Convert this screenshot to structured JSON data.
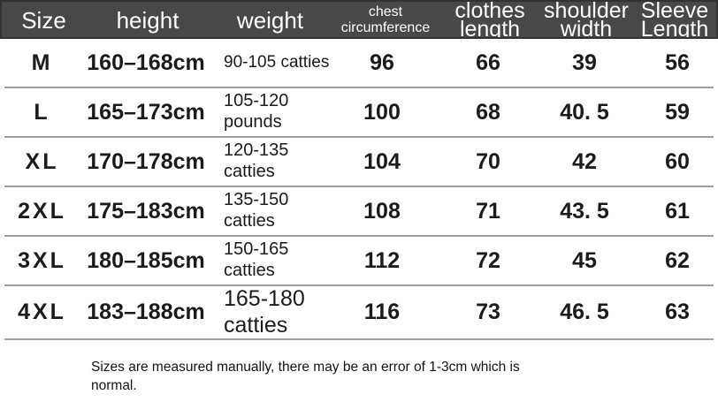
{
  "table": {
    "columns": [
      {
        "key": "size",
        "label": "Size"
      },
      {
        "key": "height",
        "label": "height"
      },
      {
        "key": "weight",
        "label": "weight"
      },
      {
        "key": "chest",
        "label": "chest circumference"
      },
      {
        "key": "clothes",
        "label": "clothes length"
      },
      {
        "key": "shoulder",
        "label": "shoulder width"
      },
      {
        "key": "sleeve",
        "label": "Sleeve Length"
      }
    ],
    "rows": [
      {
        "size": "M",
        "height": "160–168cm",
        "weight": "90-105 catties",
        "chest": "96",
        "clothes": "66",
        "shoulder": "39",
        "sleeve": "56"
      },
      {
        "size": "L",
        "height": "165–173cm",
        "weight": "105-120 pounds",
        "chest": "100",
        "clothes": "68",
        "shoulder": "40. 5",
        "sleeve": "59"
      },
      {
        "size": "XL",
        "height": "170–178cm",
        "weight": "120-135 catties",
        "chest": "104",
        "clothes": "70",
        "shoulder": "42",
        "sleeve": "60"
      },
      {
        "size": "2XL",
        "height": "175–183cm",
        "weight": "135-150 catties",
        "chest": "108",
        "clothes": "71",
        "shoulder": "43. 5",
        "sleeve": "61"
      },
      {
        "size": "3XL",
        "height": "180–185cm",
        "weight": "150-165 catties",
        "chest": "112",
        "clothes": "72",
        "shoulder": "45",
        "sleeve": "62"
      },
      {
        "size": "4XL",
        "height": "183–188cm",
        "weight": "165-180 catties",
        "chest": "116",
        "clothes": "73",
        "shoulder": "46. 5",
        "sleeve": "63"
      }
    ]
  },
  "footer": {
    "note": "Sizes are measured manually, there may be an error of 1-3cm which is normal."
  },
  "colors": {
    "header_background": "#4a4846",
    "header_text": "#ffffff",
    "divider": "#a0a0a0",
    "body_text": "#1b1b1b"
  }
}
